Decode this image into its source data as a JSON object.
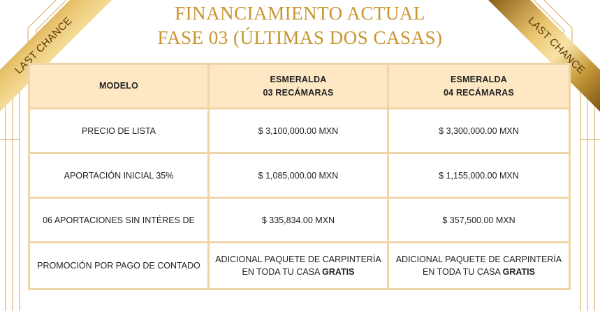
{
  "header": {
    "title_line1": "FINANCIAMIENTO ACTUAL",
    "title_line2": "FASE 03 (ÚLTIMAS DOS CASAS)"
  },
  "ribbons": {
    "left": "LAST CHANCE",
    "right": "LAST CHANCE"
  },
  "table": {
    "header": {
      "col1": "MODELO",
      "col2_line1": "ESMERALDA",
      "col2_line2": "03 RECÁMARAS",
      "col3_line1": "ESMERALDA",
      "col3_line2": "04 RECÁMARAS"
    },
    "rows": [
      {
        "label": "PRECIO DE LISTA",
        "v1": "$ 3,100,000.00 MXN",
        "v2": "$ 3,300,000.00 MXN"
      },
      {
        "label": "APORTACIÓN INICIAL 35%",
        "v1": "$ 1,085,000.00 MXN",
        "v2": "$ 1,155,000.00 MXN"
      },
      {
        "label": "06 APORTACIONES SIN INTÉRES DE",
        "v1": "$ 335,834.00 MXN",
        "v2": "$ 357,500.00 MXN"
      }
    ],
    "promo": {
      "label": "PROMOCIÓN POR PAGO DE CONTADO",
      "line1": "ADICIONAL PAQUETE DE CARPINTERÍA",
      "line2_prefix": "EN TODA TU CASA",
      "line2_bold": "GRATIS"
    }
  },
  "colors": {
    "gold": "#c9952f",
    "header_bg": "#fde8c3",
    "border": "#f0d6a7"
  }
}
